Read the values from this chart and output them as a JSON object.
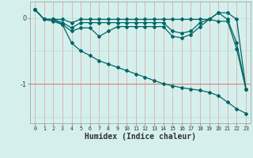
{
  "xlabel": "Humidex (Indice chaleur)",
  "x": [
    0,
    1,
    2,
    3,
    4,
    5,
    6,
    7,
    8,
    9,
    10,
    11,
    12,
    13,
    14,
    15,
    16,
    17,
    18,
    19,
    20,
    21,
    22,
    23
  ],
  "line1": [
    0.13,
    -0.02,
    -0.02,
    -0.02,
    -0.07,
    -0.02,
    -0.02,
    -0.02,
    -0.02,
    -0.02,
    -0.02,
    -0.02,
    -0.02,
    -0.02,
    -0.02,
    -0.02,
    -0.02,
    -0.02,
    -0.02,
    -0.02,
    0.08,
    0.08,
    -0.02,
    -1.08
  ],
  "line2": [
    0.13,
    -0.02,
    -0.02,
    -0.07,
    -0.15,
    -0.07,
    -0.07,
    -0.07,
    -0.07,
    -0.07,
    -0.07,
    -0.07,
    -0.07,
    -0.07,
    -0.07,
    -0.2,
    -0.23,
    -0.2,
    -0.07,
    -0.02,
    0.08,
    -0.02,
    -0.38,
    -1.08
  ],
  "line3": [
    0.13,
    -0.02,
    -0.02,
    -0.1,
    -0.2,
    -0.15,
    -0.15,
    -0.28,
    -0.2,
    -0.13,
    -0.13,
    -0.13,
    -0.13,
    -0.13,
    -0.13,
    -0.28,
    -0.3,
    -0.25,
    -0.13,
    -0.02,
    -0.05,
    -0.05,
    -0.47,
    -1.08
  ],
  "line4": [
    0.13,
    -0.02,
    -0.05,
    -0.1,
    -0.38,
    -0.5,
    -0.57,
    -0.65,
    -0.7,
    -0.75,
    -0.8,
    -0.85,
    -0.9,
    -0.95,
    -1.0,
    -1.03,
    -1.06,
    -1.08,
    -1.1,
    -1.13,
    -1.18,
    -1.28,
    -1.38,
    -1.45
  ],
  "bg_color": "#d5f0ec",
  "line_color": "#006666",
  "grid_v_color": "#dba0a0",
  "grid_h_color": "#b8ddd8",
  "hline_red": "#d08080",
  "ylim": [
    -1.6,
    0.25
  ],
  "yticks": [
    -1,
    0
  ],
  "markersize": 2.0,
  "linewidth": 0.9,
  "xlabel_fontsize": 7.0
}
